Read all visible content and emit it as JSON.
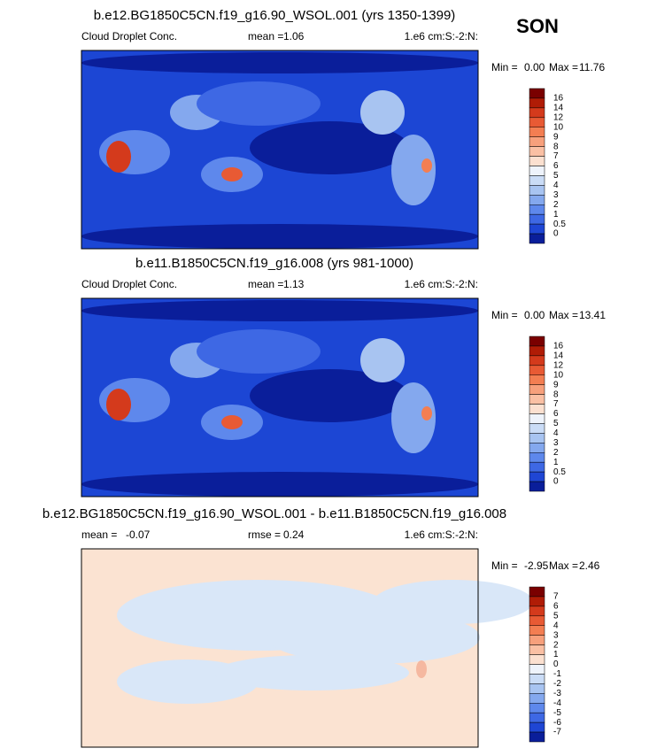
{
  "season": "SON",
  "palette": [
    "#7a0000",
    "#b01c06",
    "#d43a1c",
    "#e85a34",
    "#f37e52",
    "#f7a07c",
    "#fac0a4",
    "#fbe0d0",
    "#eef3fb",
    "#cadcf6",
    "#a8c4f1",
    "#84a8ee",
    "#5e88ec",
    "#3e68e4",
    "#1f46d4",
    "#0a1e9a"
  ],
  "panels": [
    {
      "title": "b.e12.BG1850C5CN.f19_g16.90_WSOL.001 (yrs 1350-1399)",
      "left_text": "Cloud Droplet Conc.",
      "stat_label": "mean =",
      "stat_value": "1.06",
      "units": "1.e6 cm:S:-2:N:",
      "min_label": "Min =",
      "min": "0.00",
      "max_label": "Max =",
      "max": "11.76",
      "colorbar": [
        16,
        14,
        12,
        10,
        9,
        8,
        7,
        6,
        5,
        4,
        3,
        2,
        1,
        0.5,
        0
      ]
    },
    {
      "title": "b.e11.B1850C5CN.f19_g16.008 (yrs 981-1000)",
      "left_text": "Cloud Droplet Conc.",
      "stat_label": "mean =",
      "stat_value": "1.13",
      "units": "1.e6 cm:S:-2:N:",
      "min_label": "Min =",
      "min": "0.00",
      "max_label": "Max =",
      "max": "13.41",
      "colorbar": [
        16,
        14,
        12,
        10,
        9,
        8,
        7,
        6,
        5,
        4,
        3,
        2,
        1,
        0.5,
        0
      ]
    },
    {
      "title": "b.e12.BG1850C5CN.f19_g16.90_WSOL.001 - b.e11.B1850C5CN.f19_g16.008",
      "left_text": "mean =",
      "left_value": "-0.07",
      "stat_label": "rmse =",
      "stat_value": "0.24",
      "units": "1.e6 cm:S:-2:N:",
      "min_label": "Min =",
      "min": "-2.95",
      "max_label": "Max =",
      "max": "2.46",
      "colorbar": [
        7,
        6,
        5,
        4,
        3,
        2,
        1,
        0,
        -1,
        -2,
        -3,
        -4,
        -5,
        -6,
        -7
      ]
    }
  ]
}
